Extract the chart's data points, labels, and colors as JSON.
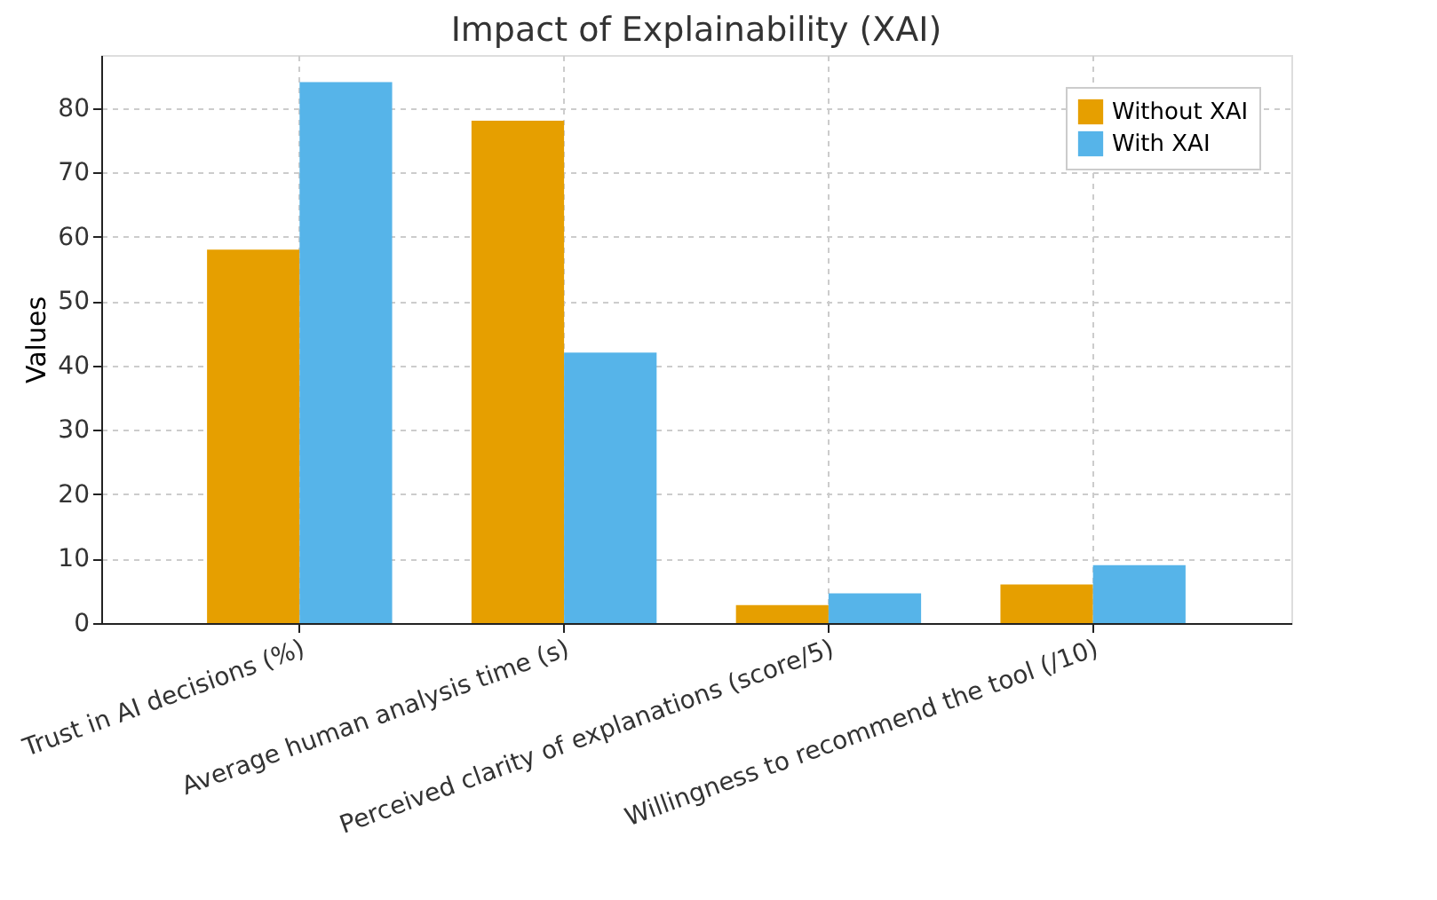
{
  "chart_data": {
    "type": "bar",
    "title": "Impact of Explainability (XAI)",
    "ylabel": "Values",
    "categories": [
      "Trust in AI decisions (%)",
      "Average human analysis time (s)",
      "Perceived clarity of explanations (score/5)",
      "Willingness to recommend the tool (/10)"
    ],
    "series": [
      {
        "name": "Without XAI",
        "color": "#e69f00",
        "values": [
          58,
          78,
          2.8,
          6
        ]
      },
      {
        "name": "With XAI",
        "color": "#56b4e9",
        "values": [
          84,
          42,
          4.6,
          9
        ]
      }
    ],
    "ylim": [
      0,
      88.2
    ],
    "yticks": [
      0,
      10,
      20,
      30,
      40,
      50,
      60,
      70,
      80
    ],
    "grid": true,
    "legend": "top right"
  }
}
